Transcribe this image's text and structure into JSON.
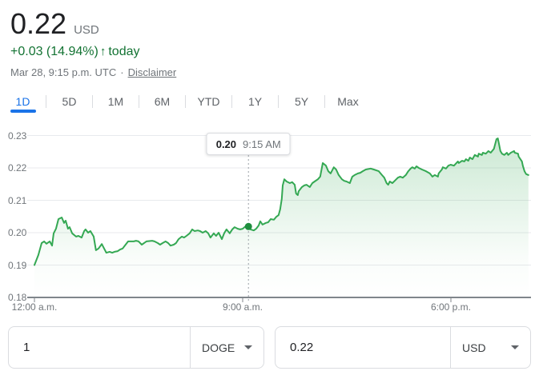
{
  "header": {
    "price": "0.22",
    "price_currency": "USD",
    "change": "+0.03 (14.94%)",
    "arrow_icon": "↑",
    "change_period": "today",
    "timestamp": "Mar 28, 9:15 p.m. UTC",
    "separator": "·",
    "disclaimer": "Disclaimer"
  },
  "tabs": [
    "1D",
    "5D",
    "1M",
    "6M",
    "YTD",
    "1Y",
    "5Y",
    "Max"
  ],
  "active_tab": "1D",
  "tooltip": {
    "price": "0.20",
    "time": "9:15 AM"
  },
  "converter": {
    "from": {
      "value": "1",
      "currency": "DOGE"
    },
    "to": {
      "value": "0.22",
      "currency": "USD"
    }
  },
  "colors": {
    "change_green": "#137333",
    "line_green": "#34a853",
    "dot_green": "#1e8e3e",
    "accent_blue": "#1a73e8",
    "secondary_text": "#70757a",
    "border": "#dadce0"
  },
  "chart_data": {
    "type": "area",
    "x_axis": {
      "unit": "hours since 12:00 a.m.",
      "range_hours": [
        0,
        21.5
      ],
      "tick_hours": [
        0,
        9,
        18
      ],
      "tick_labels": [
        "12:00 a.m.",
        "9:00 a.m.",
        "6:00 p.m."
      ]
    },
    "y_axis": {
      "range": [
        0.18,
        0.23
      ],
      "ticks": [
        0.18,
        0.19,
        0.2,
        0.21,
        0.22,
        0.23
      ],
      "tick_labels": [
        "0.18",
        "0.19",
        "0.20",
        "0.21",
        "0.22",
        "0.23"
      ]
    },
    "gridlines": [
      0.19,
      0.2,
      0.21,
      0.22,
      0.23
    ],
    "legend": "none",
    "marker": {
      "hour": 9.25,
      "price": 0.2019,
      "tooltip_price": "0.20",
      "tooltip_time": "9:15 AM"
    },
    "points": [
      [
        0.0,
        0.19
      ],
      [
        0.17,
        0.1931
      ],
      [
        0.31,
        0.1968
      ],
      [
        0.42,
        0.1973
      ],
      [
        0.52,
        0.1966
      ],
      [
        0.66,
        0.1973
      ],
      [
        0.76,
        0.196
      ],
      [
        0.83,
        0.1998
      ],
      [
        0.93,
        0.2012
      ],
      [
        1.04,
        0.2042
      ],
      [
        1.18,
        0.2047
      ],
      [
        1.28,
        0.203
      ],
      [
        1.35,
        0.2037
      ],
      [
        1.45,
        0.2012
      ],
      [
        1.52,
        0.2017
      ],
      [
        1.63,
        0.1998
      ],
      [
        1.8,
        0.1988
      ],
      [
        1.9,
        0.199
      ],
      [
        2.04,
        0.1985
      ],
      [
        2.15,
        0.2005
      ],
      [
        2.21,
        0.201
      ],
      [
        2.32,
        0.2
      ],
      [
        2.42,
        0.2005
      ],
      [
        2.56,
        0.1988
      ],
      [
        2.66,
        0.1946
      ],
      [
        2.77,
        0.1951
      ],
      [
        2.91,
        0.1965
      ],
      [
        3.01,
        0.1951
      ],
      [
        3.11,
        0.1938
      ],
      [
        3.25,
        0.1941
      ],
      [
        3.36,
        0.1938
      ],
      [
        3.46,
        0.1941
      ],
      [
        3.6,
        0.1943
      ],
      [
        3.7,
        0.1948
      ],
      [
        3.81,
        0.1951
      ],
      [
        3.94,
        0.1963
      ],
      [
        4.05,
        0.1973
      ],
      [
        4.29,
        0.1973
      ],
      [
        4.39,
        0.1975
      ],
      [
        4.5,
        0.1973
      ],
      [
        4.64,
        0.1963
      ],
      [
        4.74,
        0.1968
      ],
      [
        4.84,
        0.1973
      ],
      [
        5.09,
        0.1975
      ],
      [
        5.19,
        0.1973
      ],
      [
        5.33,
        0.1968
      ],
      [
        5.43,
        0.1963
      ],
      [
        5.54,
        0.1968
      ],
      [
        5.67,
        0.1973
      ],
      [
        5.78,
        0.1968
      ],
      [
        5.88,
        0.196
      ],
      [
        6.02,
        0.1963
      ],
      [
        6.12,
        0.1968
      ],
      [
        6.23,
        0.198
      ],
      [
        6.37,
        0.1988
      ],
      [
        6.47,
        0.1985
      ],
      [
        6.57,
        0.199
      ],
      [
        6.71,
        0.1998
      ],
      [
        6.82,
        0.201
      ],
      [
        6.92,
        0.2005
      ],
      [
        7.06,
        0.2007
      ],
      [
        7.16,
        0.2005
      ],
      [
        7.27,
        0.2
      ],
      [
        7.4,
        0.2005
      ],
      [
        7.51,
        0.1998
      ],
      [
        7.61,
        0.1985
      ],
      [
        7.75,
        0.1998
      ],
      [
        7.85,
        0.199
      ],
      [
        7.96,
        0.2
      ],
      [
        8.1,
        0.198
      ],
      [
        8.2,
        0.1998
      ],
      [
        8.3,
        0.201
      ],
      [
        8.44,
        0.1998
      ],
      [
        8.55,
        0.201
      ],
      [
        8.65,
        0.2017
      ],
      [
        8.79,
        0.2012
      ],
      [
        8.89,
        0.201
      ],
      [
        9.0,
        0.2012
      ],
      [
        9.13,
        0.202
      ],
      [
        9.25,
        0.2019
      ],
      [
        9.34,
        0.201
      ],
      [
        9.48,
        0.2007
      ],
      [
        9.58,
        0.2012
      ],
      [
        9.69,
        0.2022
      ],
      [
        9.76,
        0.2035
      ],
      [
        9.86,
        0.2025
      ],
      [
        10.0,
        0.203
      ],
      [
        10.1,
        0.2032
      ],
      [
        10.21,
        0.2042
      ],
      [
        10.35,
        0.204
      ],
      [
        10.45,
        0.2049
      ],
      [
        10.55,
        0.2054
      ],
      [
        10.62,
        0.2072
      ],
      [
        10.69,
        0.2104
      ],
      [
        10.73,
        0.2146
      ],
      [
        10.8,
        0.2165
      ],
      [
        10.9,
        0.2158
      ],
      [
        11.04,
        0.2153
      ],
      [
        11.14,
        0.2156
      ],
      [
        11.25,
        0.2148
      ],
      [
        11.31,
        0.2121
      ],
      [
        11.38,
        0.2116
      ],
      [
        11.42,
        0.2128
      ],
      [
        11.56,
        0.2141
      ],
      [
        11.66,
        0.2146
      ],
      [
        11.76,
        0.2148
      ],
      [
        11.9,
        0.2141
      ],
      [
        12.01,
        0.2153
      ],
      [
        12.11,
        0.2158
      ],
      [
        12.25,
        0.2165
      ],
      [
        12.35,
        0.2173
      ],
      [
        12.46,
        0.2215
      ],
      [
        12.6,
        0.2207
      ],
      [
        12.7,
        0.219
      ],
      [
        12.8,
        0.2183
      ],
      [
        12.94,
        0.2202
      ],
      [
        13.04,
        0.2195
      ],
      [
        13.15,
        0.2178
      ],
      [
        13.29,
        0.2165
      ],
      [
        13.39,
        0.216
      ],
      [
        13.49,
        0.2158
      ],
      [
        13.63,
        0.2153
      ],
      [
        13.74,
        0.2173
      ],
      [
        13.84,
        0.2178
      ],
      [
        13.98,
        0.2183
      ],
      [
        14.08,
        0.2185
      ],
      [
        14.19,
        0.219
      ],
      [
        14.32,
        0.2195
      ],
      [
        14.53,
        0.2198
      ],
      [
        14.67,
        0.2195
      ],
      [
        14.88,
        0.219
      ],
      [
        15.02,
        0.2178
      ],
      [
        15.12,
        0.217
      ],
      [
        15.22,
        0.2153
      ],
      [
        15.29,
        0.2148
      ],
      [
        15.36,
        0.2158
      ],
      [
        15.47,
        0.2153
      ],
      [
        15.57,
        0.216
      ],
      [
        15.71,
        0.217
      ],
      [
        15.81,
        0.2173
      ],
      [
        15.92,
        0.217
      ],
      [
        16.05,
        0.2178
      ],
      [
        16.16,
        0.219
      ],
      [
        16.26,
        0.2198
      ],
      [
        16.33,
        0.2202
      ],
      [
        16.44,
        0.2198
      ],
      [
        16.51,
        0.2205
      ],
      [
        16.61,
        0.22
      ],
      [
        16.75,
        0.2195
      ],
      [
        16.92,
        0.219
      ],
      [
        17.09,
        0.2183
      ],
      [
        17.2,
        0.2173
      ],
      [
        17.3,
        0.2178
      ],
      [
        17.44,
        0.2173
      ],
      [
        17.47,
        0.2183
      ],
      [
        17.61,
        0.2195
      ],
      [
        17.65,
        0.2202
      ],
      [
        17.79,
        0.2198
      ],
      [
        17.89,
        0.2207
      ],
      [
        17.99,
        0.221
      ],
      [
        18.13,
        0.2207
      ],
      [
        18.3,
        0.222
      ],
      [
        18.34,
        0.2215
      ],
      [
        18.48,
        0.2222
      ],
      [
        18.58,
        0.222
      ],
      [
        18.65,
        0.2227
      ],
      [
        18.75,
        0.2222
      ],
      [
        18.82,
        0.2232
      ],
      [
        18.93,
        0.2227
      ],
      [
        19.03,
        0.224
      ],
      [
        19.17,
        0.2235
      ],
      [
        19.2,
        0.2244
      ],
      [
        19.34,
        0.224
      ],
      [
        19.38,
        0.2247
      ],
      [
        19.51,
        0.2244
      ],
      [
        19.62,
        0.2252
      ],
      [
        19.72,
        0.2247
      ],
      [
        19.86,
        0.2259
      ],
      [
        19.97,
        0.2289
      ],
      [
        20.03,
        0.2291
      ],
      [
        20.07,
        0.2277
      ],
      [
        20.14,
        0.2252
      ],
      [
        20.21,
        0.2244
      ],
      [
        20.31,
        0.224
      ],
      [
        20.42,
        0.2247
      ],
      [
        20.48,
        0.224
      ],
      [
        20.59,
        0.2247
      ],
      [
        20.73,
        0.2252
      ],
      [
        20.76,
        0.2247
      ],
      [
        20.9,
        0.2244
      ],
      [
        20.93,
        0.2235
      ],
      [
        21.07,
        0.222
      ],
      [
        21.11,
        0.2207
      ],
      [
        21.18,
        0.219
      ],
      [
        21.25,
        0.2181
      ],
      [
        21.35,
        0.2178
      ]
    ]
  }
}
